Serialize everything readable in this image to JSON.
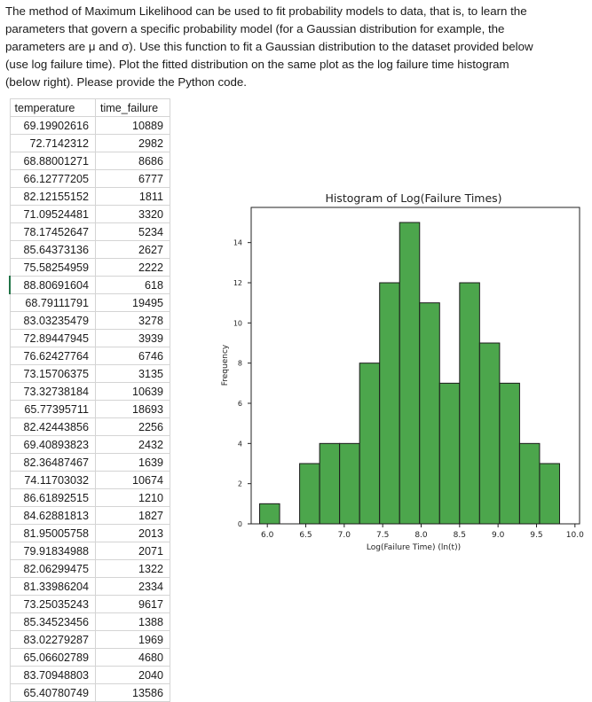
{
  "question": {
    "line1": "The method of Maximum Likelihood can be used to fit probability models to data, that is, to learn the",
    "line2": "parameters that govern a specific probability model (for a Gaussian distribution for example, the",
    "line3": "parameters are μ and σ).  Use this function to fit a Gaussian distribution to the dataset provided below",
    "line4": "(use log failure time).  Plot the fitted distribution on the same plot as the log failure time histogram",
    "line5": "(below right).  Please provide the Python code."
  },
  "table": {
    "headers": [
      "temperature",
      "time_failure"
    ],
    "rows": [
      [
        "69.19902616",
        "10889"
      ],
      [
        "72.7142312",
        "2982"
      ],
      [
        "68.88001271",
        "8686"
      ],
      [
        "66.12777205",
        "6777"
      ],
      [
        "82.12155152",
        "1811"
      ],
      [
        "71.09524481",
        "3320"
      ],
      [
        "78.17452647",
        "5234"
      ],
      [
        "85.64373136",
        "2627"
      ],
      [
        "75.58254959",
        "2222"
      ],
      [
        "88.80691604",
        "618"
      ],
      [
        "68.79111791",
        "19495"
      ],
      [
        "83.03235479",
        "3278"
      ],
      [
        "72.89447945",
        "3939"
      ],
      [
        "76.62427764",
        "6746"
      ],
      [
        "73.15706375",
        "3135"
      ],
      [
        "73.32738184",
        "10639"
      ],
      [
        "65.77395711",
        "18693"
      ],
      [
        "82.42443856",
        "2256"
      ],
      [
        "69.40893823",
        "2432"
      ],
      [
        "82.36487467",
        "1639"
      ],
      [
        "74.11703032",
        "10674"
      ],
      [
        "86.61892515",
        "1210"
      ],
      [
        "84.62881813",
        "1827"
      ],
      [
        "81.95005758",
        "2013"
      ],
      [
        "79.91834988",
        "2071"
      ],
      [
        "82.06299475",
        "1322"
      ],
      [
        "81.33986204",
        "2334"
      ],
      [
        "73.25035243",
        "9617"
      ],
      [
        "85.34523456",
        "1388"
      ],
      [
        "83.02279287",
        "1969"
      ],
      [
        "65.06602789",
        "4680"
      ],
      [
        "83.70948803",
        "2040"
      ],
      [
        "65.40780749",
        "13586"
      ]
    ]
  },
  "chart_data": {
    "type": "bar",
    "title": "Histogram of Log(Failure Times)",
    "xlabel": "Log(Failure Time) (ln(t))",
    "ylabel": "Frequency",
    "xlim": [
      5.79,
      10.06
    ],
    "ylim": [
      0,
      15.75
    ],
    "xticks": [
      "6.0",
      "6.5",
      "7.0",
      "7.5",
      "8.0",
      "8.5",
      "9.0",
      "9.5",
      "10.0"
    ],
    "yticks": [
      "0",
      "2",
      "4",
      "6",
      "8",
      "10",
      "12",
      "14"
    ],
    "bin_edges": [
      5.9,
      6.16,
      6.42,
      6.68,
      6.94,
      7.2,
      7.46,
      7.72,
      7.98,
      8.24,
      8.5,
      8.76,
      9.02,
      9.28,
      9.54,
      9.8
    ],
    "values": [
      1,
      0,
      3,
      4,
      4,
      8,
      12,
      15,
      11,
      7,
      12,
      9,
      7,
      4,
      3
    ],
    "bar_color": "#4ca64c",
    "edge_color": "#1a1a1a",
    "grid": false
  }
}
